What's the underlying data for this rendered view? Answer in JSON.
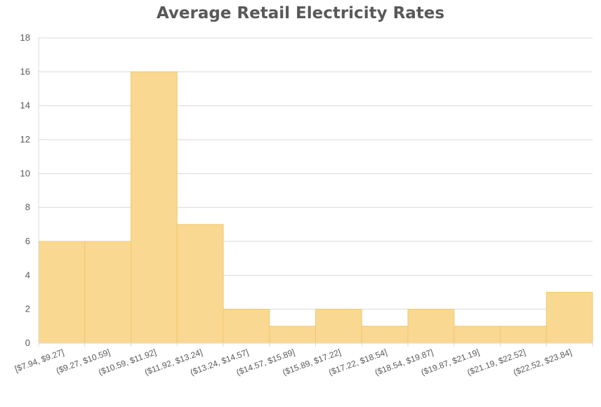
{
  "chart_data": {
    "type": "bar",
    "title": "Average Retail Electricity Rates",
    "xlabel": "",
    "ylabel": "",
    "ylim": [
      0,
      18
    ],
    "yticks": [
      0,
      2,
      4,
      6,
      8,
      10,
      12,
      14,
      16,
      18
    ],
    "grid": true,
    "legend": "none",
    "bar_color": "#F9D891",
    "bar_border_color": "#F3C870",
    "grid_color": "#D9D9D9",
    "axis_text_color": "#595959",
    "categories": [
      "[$7.94, $9.27]",
      "($9.27, $10.59]",
      "($10.59, $11.92]",
      "($11.92, $13.24]",
      "($13.24, $14.57]",
      "($14.57, $15.89]",
      "($15.89, $17.22]",
      "($17.22, $18.54]",
      "($18.54, $19.87]",
      "($19.87, $21.19]",
      "($21.19, $22.52]",
      "($22.52, $23.84]"
    ],
    "values": [
      6,
      6,
      16,
      7,
      2,
      1,
      2,
      1,
      2,
      1,
      1,
      3
    ]
  }
}
